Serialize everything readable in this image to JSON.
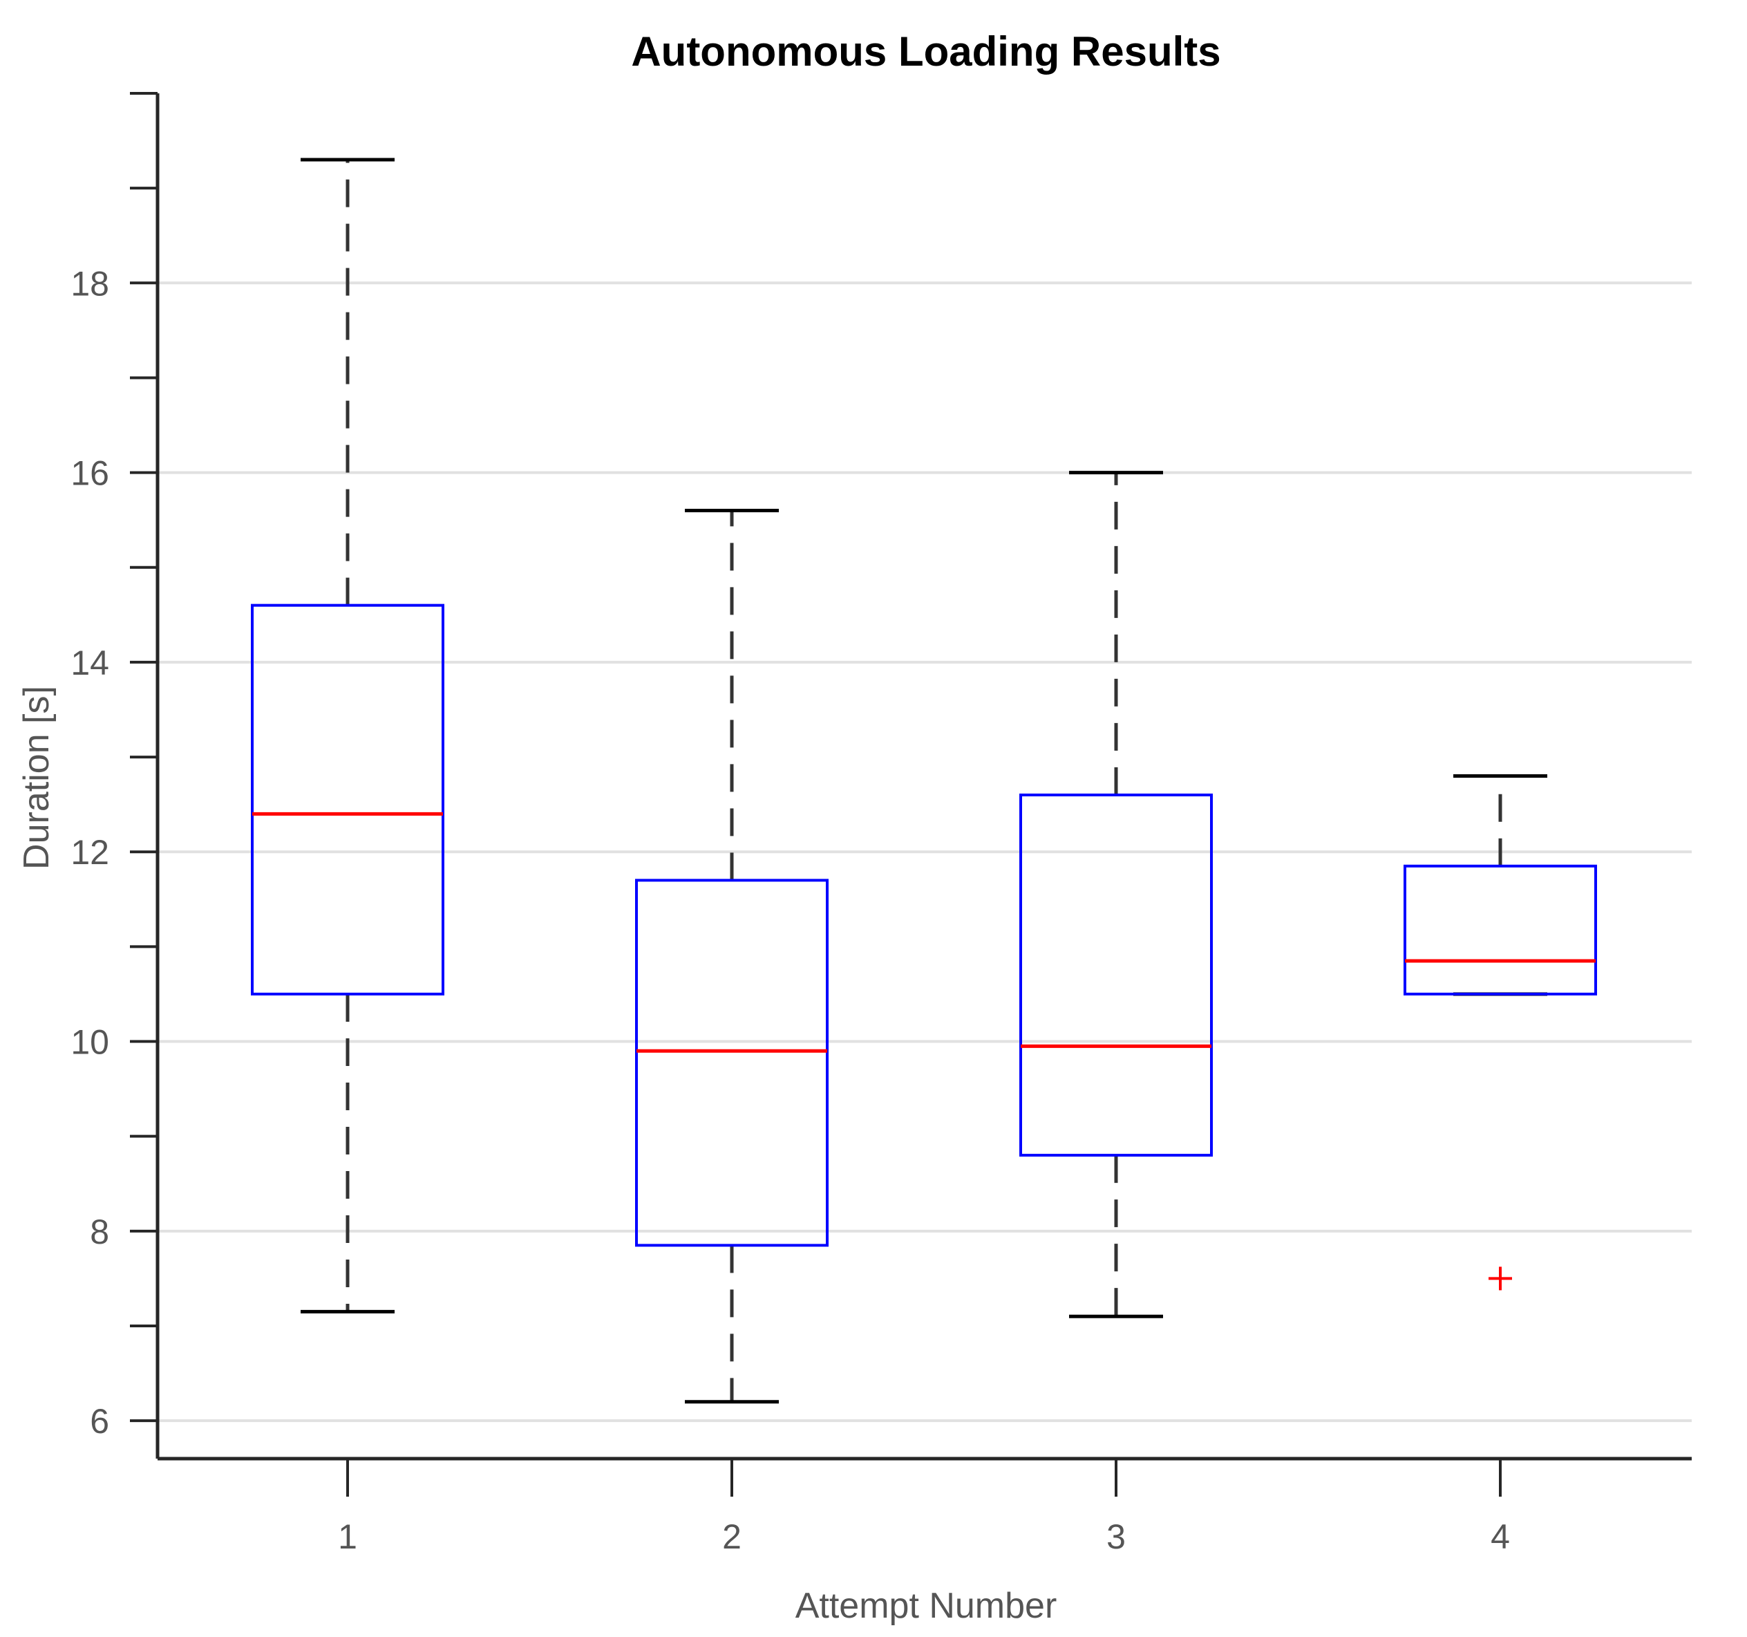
{
  "chart_data": {
    "type": "box",
    "title": "Autonomous Loading Results",
    "xlabel": "Attempt Number",
    "ylabel": "Duration [s]",
    "categories": [
      "1",
      "2",
      "3",
      "4"
    ],
    "ylim": [
      5.6,
      20.0
    ],
    "yticks": [
      6,
      8,
      10,
      12,
      14,
      16,
      18
    ],
    "ytick_labels": [
      "6",
      "8",
      "10",
      "12",
      "14",
      "16",
      "18"
    ],
    "grid": true,
    "boxes": [
      {
        "category": "1",
        "whisker_low": 7.15,
        "q1": 10.5,
        "median": 12.4,
        "q3": 14.6,
        "whisker_high": 19.3,
        "outliers": []
      },
      {
        "category": "2",
        "whisker_low": 6.2,
        "q1": 7.85,
        "median": 9.9,
        "q3": 11.7,
        "whisker_high": 15.6,
        "outliers": []
      },
      {
        "category": "3",
        "whisker_low": 7.1,
        "q1": 8.8,
        "median": 9.95,
        "q3": 12.6,
        "whisker_high": 16.0,
        "outliers": []
      },
      {
        "category": "4",
        "whisker_low": 10.5,
        "q1": 10.5,
        "median": 10.85,
        "q3": 11.85,
        "whisker_high": 12.8,
        "outliers": [
          7.5
        ]
      }
    ],
    "colors": {
      "box": "#0000ff",
      "median": "#ff0000",
      "whisker": "#000000",
      "outlier": "#ff0000",
      "grid": "#e1e1e1",
      "axis": "#262626"
    }
  }
}
